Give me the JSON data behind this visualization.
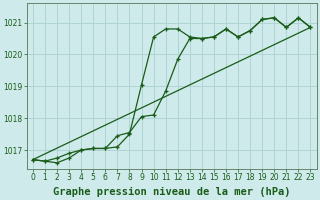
{
  "title": "Graphe pression niveau de la mer (hPa)",
  "bg_color": "#ceeaea",
  "grid_color": "#b0d4d4",
  "line_color": "#1a5c1a",
  "xlim": [
    -0.5,
    23.5
  ],
  "ylim": [
    1016.4,
    1021.6
  ],
  "yticks": [
    1017,
    1018,
    1019,
    1020,
    1021
  ],
  "xticks": [
    0,
    1,
    2,
    3,
    4,
    5,
    6,
    7,
    8,
    9,
    10,
    11,
    12,
    13,
    14,
    15,
    16,
    17,
    18,
    19,
    20,
    21,
    22,
    23
  ],
  "series1_x": [
    0,
    1,
    2,
    3,
    4,
    5,
    6,
    7,
    8,
    9,
    10,
    11,
    12,
    13,
    14,
    15,
    16,
    17,
    18,
    19,
    20,
    21,
    22,
    23
  ],
  "series1_y": [
    1016.7,
    1016.65,
    1016.6,
    1016.75,
    1017.0,
    1017.05,
    1017.05,
    1017.1,
    1017.5,
    1019.05,
    1020.55,
    1020.8,
    1020.8,
    1020.55,
    1020.5,
    1020.55,
    1020.8,
    1020.55,
    1020.75,
    1021.1,
    1021.15,
    1020.85,
    1021.15,
    1020.85
  ],
  "series2_x": [
    0,
    1,
    2,
    3,
    4,
    5,
    6,
    7,
    8,
    9,
    10,
    11,
    12,
    13,
    14,
    15,
    16,
    17,
    18,
    19,
    20,
    21,
    22,
    23
  ],
  "series2_y": [
    1016.7,
    1016.65,
    1016.75,
    1016.9,
    1017.0,
    1017.05,
    1017.05,
    1017.45,
    1017.55,
    1018.05,
    1018.1,
    1018.85,
    1019.85,
    1020.5,
    1020.5,
    1020.55,
    1020.8,
    1020.55,
    1020.75,
    1021.1,
    1021.15,
    1020.85,
    1021.15,
    1020.85
  ],
  "series3_x": [
    0,
    23
  ],
  "series3_y": [
    1016.7,
    1020.85
  ],
  "title_fontsize": 7.5,
  "tick_fontsize": 5.5
}
